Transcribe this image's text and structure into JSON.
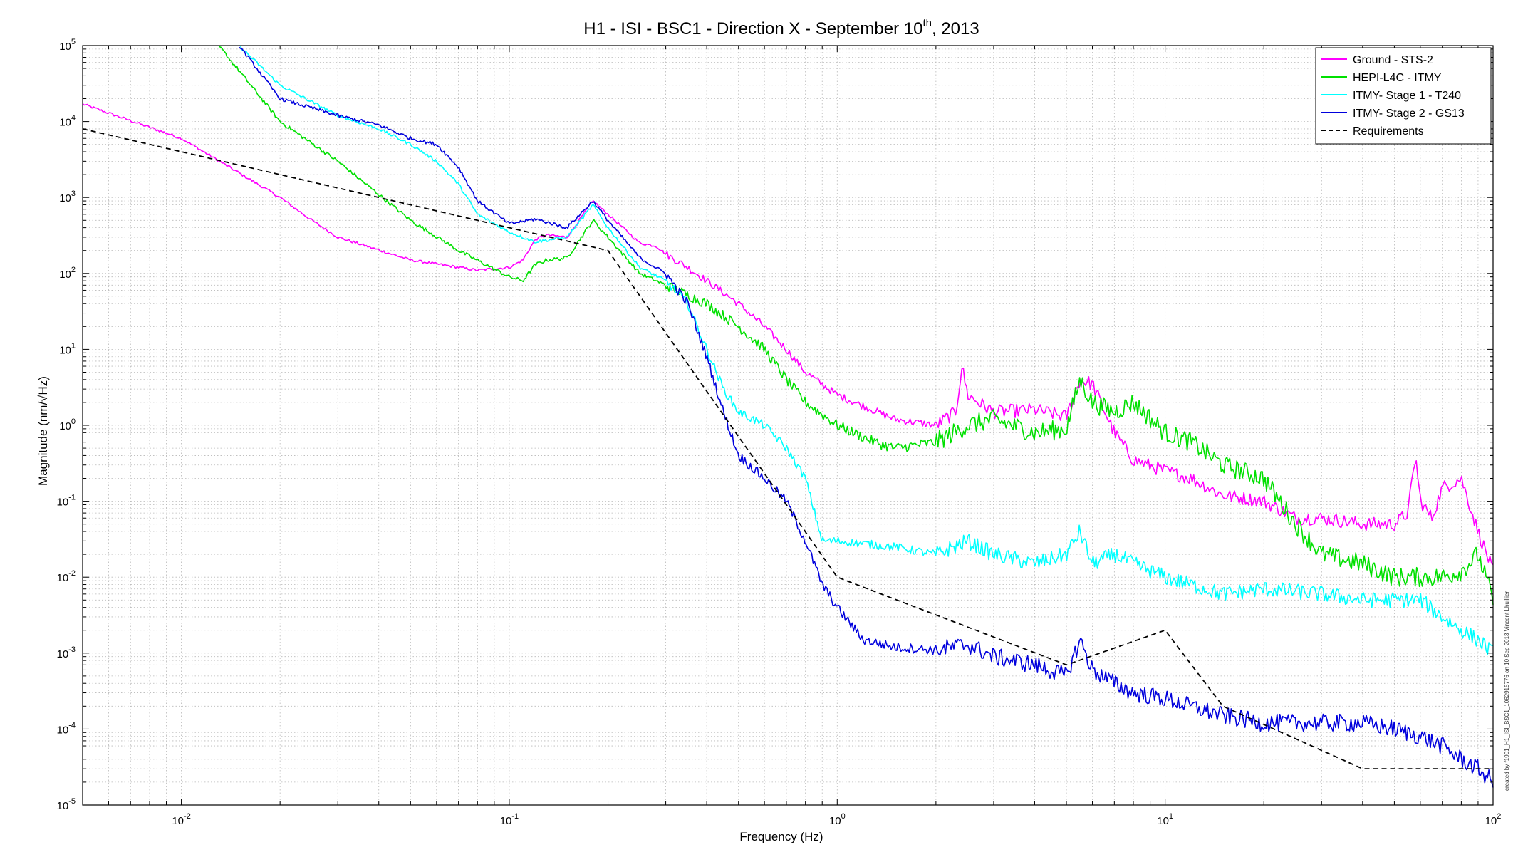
{
  "chart_data": {
    "type": "line",
    "title": "H1 - ISI - BSC1 - Direction X - September 10",
    "title_superscript": "th",
    "title_suffix": ", 2013",
    "xlabel": "Frequency (Hz)",
    "ylabel": "Magnitude (nm/√Hz)",
    "x_scale": "log",
    "y_scale": "log",
    "xlim": [
      0.005,
      100
    ],
    "ylim": [
      1e-05,
      100000
    ],
    "grid": true,
    "legend_position": "top-right",
    "x_ticks": [
      {
        "value": 0.01,
        "base": "10",
        "exp": "-2"
      },
      {
        "value": 0.1,
        "base": "10",
        "exp": "-1"
      },
      {
        "value": 1,
        "base": "10",
        "exp": "0"
      },
      {
        "value": 10,
        "base": "10",
        "exp": "1"
      },
      {
        "value": 100,
        "base": "10",
        "exp": "2"
      }
    ],
    "y_ticks": [
      {
        "value": 100000,
        "base": "10",
        "exp": "5"
      },
      {
        "value": 10000,
        "base": "10",
        "exp": "4"
      },
      {
        "value": 1000,
        "base": "10",
        "exp": "3"
      },
      {
        "value": 100,
        "base": "10",
        "exp": "2"
      },
      {
        "value": 10,
        "base": "10",
        "exp": "1"
      },
      {
        "value": 1,
        "base": "10",
        "exp": "0"
      },
      {
        "value": 0.1,
        "base": "10",
        "exp": "-1"
      },
      {
        "value": 0.01,
        "base": "10",
        "exp": "-2"
      },
      {
        "value": 0.001,
        "base": "10",
        "exp": "-3"
      },
      {
        "value": 0.0001,
        "base": "10",
        "exp": "-4"
      },
      {
        "value": 1e-05,
        "base": "10",
        "exp": "-5"
      }
    ],
    "side_annotation": "created by f1901_H1_ISI_BSC1_1062915776 on 10 Sep 2013 Vincent Lhuillier",
    "series": [
      {
        "name": "Ground - STS-2",
        "color": "#ff00ff",
        "dash": "solid",
        "noise": 0.07,
        "x": [
          0.005,
          0.01,
          0.02,
          0.025,
          0.03,
          0.05,
          0.08,
          0.1,
          0.11,
          0.12,
          0.13,
          0.15,
          0.18,
          0.2,
          0.23,
          0.25,
          0.28,
          0.3,
          0.35,
          0.4,
          0.5,
          0.6,
          0.7,
          0.8,
          1.0,
          1.2,
          1.5,
          2.0,
          2.3,
          2.4,
          2.5,
          2.8,
          3.0,
          4.0,
          5.0,
          5.5,
          6.0,
          7.0,
          8.0,
          10.0,
          12.0,
          15.0,
          20.0,
          25.0,
          30.0,
          40.0,
          50.0,
          55.0,
          58.0,
          60.0,
          65.0,
          70.0,
          80.0,
          90.0,
          100.0
        ],
        "y": [
          17000,
          6000,
          1000,
          500,
          300,
          150,
          110,
          120,
          150,
          280,
          320,
          300,
          900,
          600,
          350,
          250,
          230,
          180,
          120,
          80,
          40,
          20,
          10,
          5,
          2.5,
          1.8,
          1.2,
          1.0,
          1.5,
          6,
          2.5,
          1.8,
          1.5,
          1.6,
          1.3,
          4,
          3.5,
          0.8,
          0.35,
          0.25,
          0.2,
          0.12,
          0.1,
          0.06,
          0.06,
          0.05,
          0.05,
          0.07,
          0.4,
          0.1,
          0.06,
          0.15,
          0.2,
          0.04,
          0.012
        ]
      },
      {
        "name": "HEPI-L4C - ITMY",
        "color": "#00e000",
        "dash": "solid",
        "noise": 0.1,
        "x": [
          0.013,
          0.02,
          0.03,
          0.05,
          0.07,
          0.1,
          0.11,
          0.12,
          0.13,
          0.15,
          0.18,
          0.2,
          0.25,
          0.3,
          0.4,
          0.5,
          0.6,
          0.7,
          0.8,
          1.0,
          1.3,
          1.5,
          2.0,
          2.5,
          3.0,
          4.0,
          5.0,
          5.5,
          6.0,
          7.0,
          8.0,
          10.0,
          12.0,
          15.0,
          20.0,
          25.0,
          30.0,
          40.0,
          50.0,
          60.0,
          70.0,
          80.0,
          90.0,
          100.0
        ],
        "y": [
          100000,
          10000,
          3000,
          500,
          200,
          90,
          80,
          130,
          150,
          160,
          500,
          300,
          100,
          70,
          40,
          20,
          10,
          4,
          2,
          1,
          0.6,
          0.5,
          0.6,
          1.0,
          1.2,
          0.8,
          0.9,
          4,
          2,
          1.5,
          2.0,
          0.8,
          0.6,
          0.3,
          0.2,
          0.05,
          0.02,
          0.015,
          0.01,
          0.01,
          0.01,
          0.012,
          0.02,
          0.005
        ]
      },
      {
        "name": "ITMY- Stage 1 - T240",
        "color": "#00ffff",
        "dash": "solid",
        "noise": 0.08,
        "x": [
          0.015,
          0.02,
          0.03,
          0.04,
          0.05,
          0.06,
          0.07,
          0.08,
          0.1,
          0.12,
          0.15,
          0.18,
          0.2,
          0.25,
          0.3,
          0.35,
          0.4,
          0.45,
          0.5,
          0.6,
          0.7,
          0.8,
          0.9,
          1.0,
          1.5,
          2.0,
          2.5,
          3.0,
          4.0,
          5.0,
          5.5,
          6.0,
          7.0,
          8.0,
          10.0,
          15.0,
          20.0,
          30.0,
          40.0,
          50.0,
          60.0,
          70.0,
          80.0,
          90.0,
          100.0
        ],
        "y": [
          100000,
          30000,
          12000,
          8000,
          5000,
          3000,
          1500,
          600,
          350,
          260,
          300,
          800,
          400,
          120,
          80,
          40,
          10,
          3,
          1.5,
          1.0,
          0.5,
          0.2,
          0.03,
          0.03,
          0.025,
          0.02,
          0.03,
          0.02,
          0.015,
          0.02,
          0.04,
          0.015,
          0.02,
          0.015,
          0.01,
          0.006,
          0.007,
          0.006,
          0.005,
          0.005,
          0.005,
          0.003,
          0.002,
          0.0015,
          0.001
        ]
      },
      {
        "name": "ITMY- Stage 2 - GS13",
        "color": "#0000dd",
        "dash": "solid",
        "noise": 0.09,
        "x": [
          0.015,
          0.02,
          0.03,
          0.04,
          0.05,
          0.06,
          0.07,
          0.08,
          0.1,
          0.12,
          0.15,
          0.18,
          0.2,
          0.25,
          0.3,
          0.35,
          0.4,
          0.45,
          0.5,
          0.6,
          0.7,
          0.8,
          0.9,
          1.0,
          1.2,
          1.5,
          2.0,
          2.5,
          3.0,
          4.0,
          5.0,
          5.5,
          6.0,
          7.0,
          8.0,
          10.0,
          15.0,
          20.0,
          30.0,
          40.0,
          50.0,
          60.0,
          70.0,
          80.0,
          90.0,
          100.0
        ],
        "y": [
          100000,
          20000,
          12000,
          9000,
          6000,
          5000,
          2500,
          900,
          450,
          520,
          400,
          900,
          500,
          160,
          100,
          40,
          8,
          1.5,
          0.4,
          0.2,
          0.1,
          0.03,
          0.008,
          0.004,
          0.0015,
          0.0012,
          0.0011,
          0.0013,
          0.0009,
          0.0007,
          0.0005,
          0.0015,
          0.0006,
          0.0004,
          0.0003,
          0.00025,
          0.00015,
          0.00012,
          0.00012,
          0.00012,
          0.0001,
          8e-05,
          6e-05,
          4e-05,
          3e-05,
          2e-05
        ]
      },
      {
        "name": "Requirements",
        "color": "#000000",
        "dash": "dashed",
        "noise": 0,
        "x": [
          0.005,
          0.2,
          1.0,
          5.0,
          10.0,
          15.0,
          40.0,
          100.0
        ],
        "y": [
          8000,
          200,
          0.01,
          0.0007,
          0.002,
          0.0002,
          3e-05,
          3e-05
        ]
      }
    ]
  }
}
